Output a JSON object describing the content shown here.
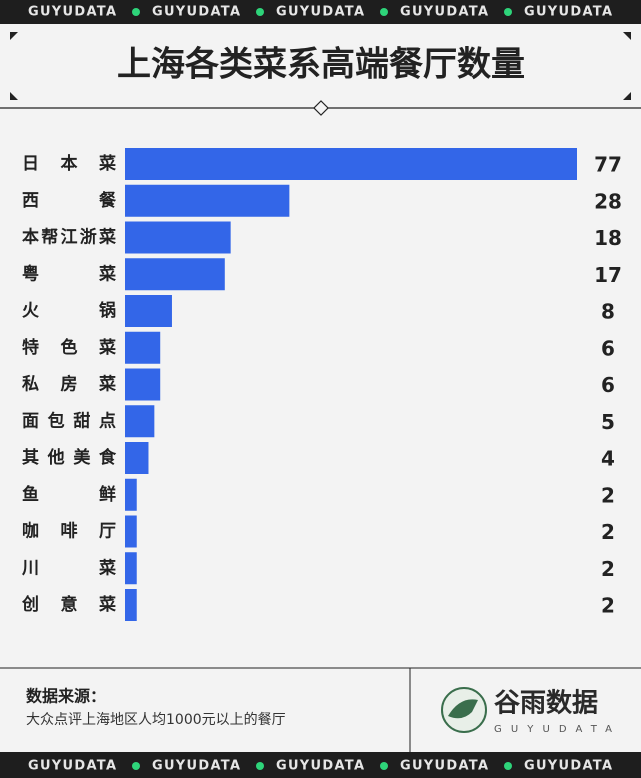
{
  "brand": "GUYUDATA",
  "chart_data": {
    "type": "bar",
    "orientation": "horizontal",
    "title": "上海各类菜系高端餐厅数量",
    "categories": [
      "日本菜",
      "西餐",
      "本帮江浙菜",
      "粤菜",
      "火锅",
      "特色菜",
      "私房菜",
      "面包甜点",
      "其他美食",
      "鱼鲜",
      "咖啡厅",
      "川菜",
      "创意菜"
    ],
    "values": [
      77,
      28,
      18,
      17,
      8,
      6,
      6,
      5,
      4,
      2,
      2,
      2,
      2
    ],
    "color": "#3366e8"
  },
  "footer": {
    "source_label": "数据来源：",
    "source": "大众点评上海地区人均1000元以上的餐厅",
    "logo_name": "谷雨数据",
    "logo_sub": "GUYUDATA"
  }
}
